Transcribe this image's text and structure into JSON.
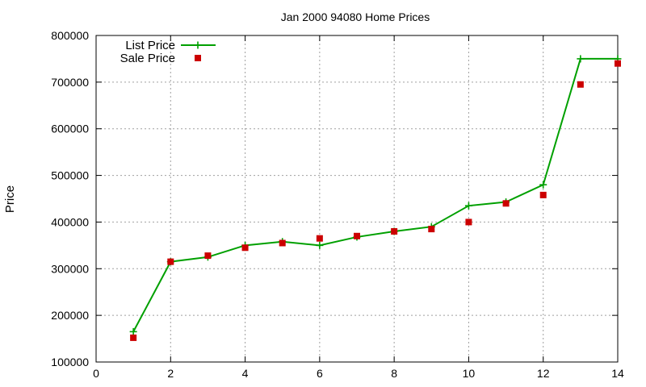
{
  "chart_data": {
    "type": "line",
    "title": "Jan 2000 94080 Home Prices",
    "xlabel": "",
    "ylabel": "Price",
    "xlim": [
      0,
      14
    ],
    "ylim": [
      100000,
      800000
    ],
    "x_ticks": [
      "0",
      "2",
      "4",
      "6",
      "8",
      "10",
      "12",
      "14"
    ],
    "y_ticks": [
      "100000",
      "200000",
      "300000",
      "400000",
      "500000",
      "600000",
      "700000",
      "800000"
    ],
    "grid": true,
    "legend_position": "top-left",
    "series": [
      {
        "name": "List Price",
        "style": "line-plus",
        "color": "#00a000",
        "x": [
          1,
          2,
          3,
          4,
          5,
          6,
          7,
          8,
          9,
          10,
          11,
          12,
          13,
          14
        ],
        "values": [
          165000,
          315000,
          325000,
          350000,
          358000,
          350000,
          368000,
          380000,
          390000,
          435000,
          443000,
          480000,
          750000,
          750000
        ]
      },
      {
        "name": "Sale Price",
        "style": "square",
        "color": "#cc0000",
        "x": [
          1,
          2,
          3,
          4,
          5,
          6,
          7,
          8,
          9,
          10,
          11,
          12,
          13,
          14
        ],
        "values": [
          152000,
          315000,
          328000,
          345000,
          355000,
          365000,
          370000,
          380000,
          385000,
          400000,
          440000,
          458000,
          695000,
          740000
        ]
      }
    ]
  }
}
